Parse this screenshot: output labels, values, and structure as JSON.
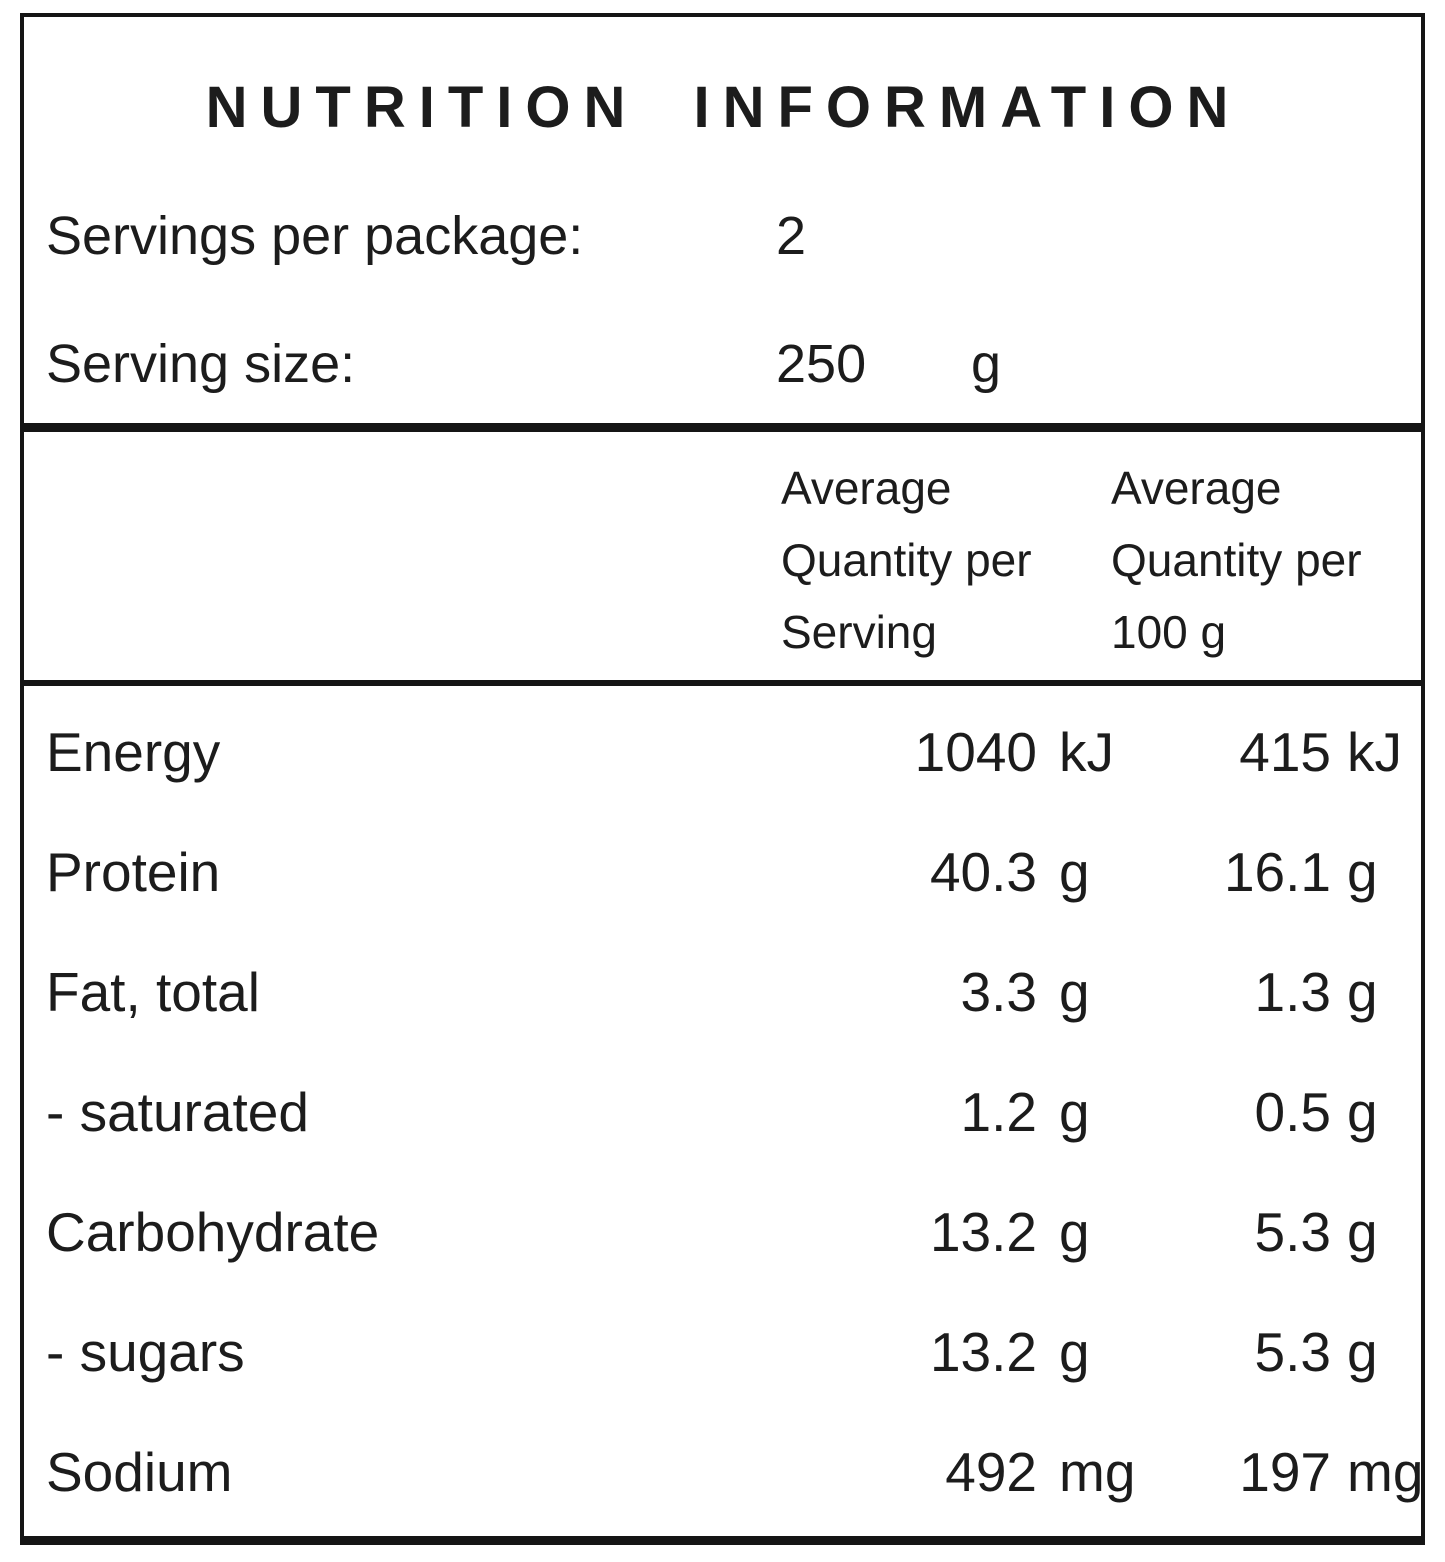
{
  "panel": {
    "title": "NUTRITION INFORMATION",
    "servings_per_package": {
      "label": "Servings per package:",
      "value": "2"
    },
    "serving_size": {
      "label": "Serving size:",
      "value": "250",
      "unit": "g"
    },
    "columns": {
      "per_serving": {
        "line1": "Average",
        "line2": "Quantity per",
        "line3": "Serving"
      },
      "per_100g": {
        "line1": "Average",
        "line2": "Quantity per",
        "line3": "100 g"
      }
    },
    "rows": [
      {
        "name": "Energy",
        "per_serving_value": "1040",
        "per_serving_unit": "kJ",
        "per_100g_value": "415",
        "per_100g_unit": "kJ"
      },
      {
        "name": "Protein",
        "per_serving_value": "40.3",
        "per_serving_unit": "g",
        "per_100g_value": "16.1",
        "per_100g_unit": "g"
      },
      {
        "name": "Fat, total",
        "per_serving_value": "3.3",
        "per_serving_unit": "g",
        "per_100g_value": "1.3",
        "per_100g_unit": "g"
      },
      {
        "name": "- saturated",
        "per_serving_value": "1.2",
        "per_serving_unit": "g",
        "per_100g_value": "0.5",
        "per_100g_unit": "g"
      },
      {
        "name": "Carbohydrate",
        "per_serving_value": "13.2",
        "per_serving_unit": "g",
        "per_100g_value": "5.3",
        "per_100g_unit": "g"
      },
      {
        "name": "- sugars",
        "per_serving_value": "13.2",
        "per_serving_unit": "g",
        "per_100g_value": "5.3",
        "per_100g_unit": "g"
      },
      {
        "name": "Sodium",
        "per_serving_value": "492",
        "per_serving_unit": "mg",
        "per_100g_value": "197",
        "per_100g_unit": "mg"
      }
    ],
    "colors": {
      "text": "#1c1c1c",
      "border": "#151515",
      "background": "#ffffff"
    }
  }
}
